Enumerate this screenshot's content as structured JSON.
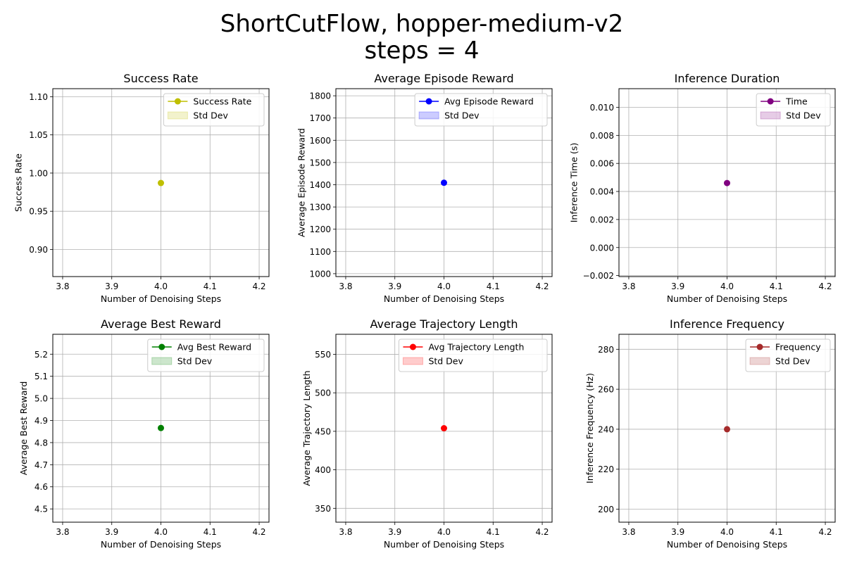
{
  "title_lines": [
    "ShortCutFlow, hopper-medium-v2",
    "steps = 4"
  ],
  "chart_data": [
    {
      "type": "scatter",
      "title": "Success Rate",
      "xlabel": "Number of Denoising Steps",
      "ylabel": "Success Rate",
      "xlim": [
        3.78,
        4.22
      ],
      "ylim": [
        0.8645,
        1.1105
      ],
      "xticks": [
        "3.8",
        "3.9",
        "4.0",
        "4.1",
        "4.2"
      ],
      "xtick_values": [
        3.8,
        3.9,
        4.0,
        4.1,
        4.2
      ],
      "yticks": [
        "0.90",
        "0.95",
        "1.00",
        "1.05",
        "1.10"
      ],
      "ytick_values": [
        0.9,
        0.95,
        1.0,
        1.05,
        1.1
      ],
      "grid": true,
      "legend_position": "top-right",
      "series": [
        {
          "name": "Success Rate",
          "x": [
            4.0
          ],
          "y": [
            0.987
          ],
          "color": "#bfbf00"
        }
      ],
      "band_label": "Std Dev",
      "band_color": "#bfbf00"
    },
    {
      "type": "scatter",
      "title": "Average Episode Reward",
      "xlabel": "Number of Denoising Steps",
      "ylabel": "Average Episode Reward",
      "xlim": [
        3.78,
        4.22
      ],
      "ylim": [
        987,
        1832
      ],
      "xticks": [
        "3.8",
        "3.9",
        "4.0",
        "4.1",
        "4.2"
      ],
      "xtick_values": [
        3.8,
        3.9,
        4.0,
        4.1,
        4.2
      ],
      "yticks": [
        "1000",
        "1100",
        "1200",
        "1300",
        "1400",
        "1500",
        "1600",
        "1700",
        "1800"
      ],
      "ytick_values": [
        1000,
        1100,
        1200,
        1300,
        1400,
        1500,
        1600,
        1700,
        1800
      ],
      "grid": true,
      "legend_position": "top-right",
      "series": [
        {
          "name": "Avg Episode Reward",
          "x": [
            4.0
          ],
          "y": [
            1409
          ],
          "color": "#0000ff"
        }
      ],
      "band_label": "Std Dev",
      "band_color": "#0000ff"
    },
    {
      "type": "scatter",
      "title": "Inference Duration",
      "xlabel": "Number of Denoising Steps",
      "ylabel": "Inference Time (s)",
      "xlim": [
        3.78,
        4.22
      ],
      "ylim": [
        -0.00207,
        0.01133
      ],
      "xticks": [
        "3.8",
        "3.9",
        "4.0",
        "4.1",
        "4.2"
      ],
      "xtick_values": [
        3.8,
        3.9,
        4.0,
        4.1,
        4.2
      ],
      "yticks": [
        "−0.002",
        "0.000",
        "0.002",
        "0.004",
        "0.006",
        "0.008",
        "0.010"
      ],
      "ytick_values": [
        -0.002,
        0.0,
        0.002,
        0.004,
        0.006,
        0.008,
        0.01
      ],
      "grid": true,
      "legend_position": "top-right",
      "series": [
        {
          "name": "Time",
          "x": [
            4.0
          ],
          "y": [
            0.0046
          ],
          "color": "#800080"
        }
      ],
      "band_label": "Std Dev",
      "band_color": "#800080"
    },
    {
      "type": "scatter",
      "title": "Average Best Reward",
      "xlabel": "Number of Denoising Steps",
      "ylabel": "Average Best Reward",
      "xlim": [
        3.78,
        4.22
      ],
      "ylim": [
        4.44,
        5.29
      ],
      "xticks": [
        "3.8",
        "3.9",
        "4.0",
        "4.1",
        "4.2"
      ],
      "xtick_values": [
        3.8,
        3.9,
        4.0,
        4.1,
        4.2
      ],
      "yticks": [
        "4.5",
        "4.6",
        "4.7",
        "4.8",
        "4.9",
        "5.0",
        "5.1",
        "5.2"
      ],
      "ytick_values": [
        4.5,
        4.6,
        4.7,
        4.8,
        4.9,
        5.0,
        5.1,
        5.2
      ],
      "grid": true,
      "legend_position": "top-right",
      "series": [
        {
          "name": "Avg Best Reward",
          "x": [
            4.0
          ],
          "y": [
            4.866
          ],
          "color": "#008000"
        }
      ],
      "band_label": "Std Dev",
      "band_color": "#008000"
    },
    {
      "type": "scatter",
      "title": "Average Trajectory Length",
      "xlabel": "Number of Denoising Steps",
      "ylabel": "Average Trajectory Length",
      "xlim": [
        3.78,
        4.22
      ],
      "ylim": [
        332,
        576
      ],
      "xticks": [
        "3.8",
        "3.9",
        "4.0",
        "4.1",
        "4.2"
      ],
      "xtick_values": [
        3.8,
        3.9,
        4.0,
        4.1,
        4.2
      ],
      "yticks": [
        "350",
        "400",
        "450",
        "500",
        "550"
      ],
      "ytick_values": [
        350,
        400,
        450,
        500,
        550
      ],
      "grid": true,
      "legend_position": "top-right",
      "series": [
        {
          "name": "Avg Trajectory Length",
          "x": [
            4.0
          ],
          "y": [
            454
          ],
          "color": "#ff0000"
        }
      ],
      "band_label": "Std Dev",
      "band_color": "#ff0000"
    },
    {
      "type": "scatter",
      "title": "Inference Frequency",
      "xlabel": "Number of Denoising Steps",
      "ylabel": "Inference Frequency (Hz)",
      "xlim": [
        3.78,
        4.22
      ],
      "ylim": [
        193.5,
        287.5
      ],
      "xticks": [
        "3.8",
        "3.9",
        "4.0",
        "4.1",
        "4.2"
      ],
      "xtick_values": [
        3.8,
        3.9,
        4.0,
        4.1,
        4.2
      ],
      "yticks": [
        "200",
        "220",
        "240",
        "260",
        "280"
      ],
      "ytick_values": [
        200,
        220,
        240,
        260,
        280
      ],
      "grid": true,
      "legend_position": "top-right",
      "series": [
        {
          "name": "Frequency",
          "x": [
            4.0
          ],
          "y": [
            240
          ],
          "color": "#a52a2a"
        }
      ],
      "band_label": "Std Dev",
      "band_color": "#a52a2a"
    }
  ]
}
